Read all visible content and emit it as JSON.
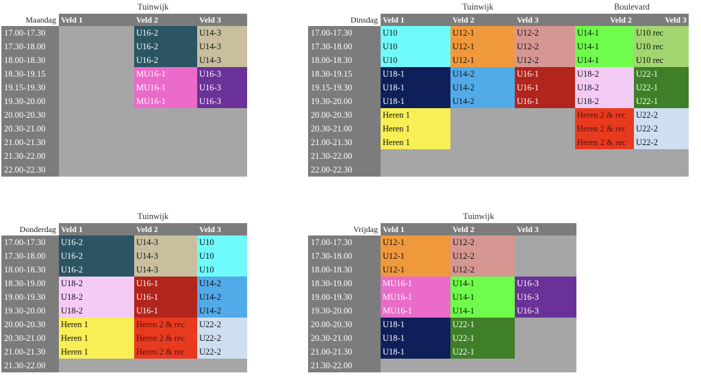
{
  "colors": {
    "header_bg": "#7c7c7c",
    "empty_bg": "#a6a6a6",
    "teams": {
      "U16-2": {
        "bg": "#2b5563",
        "fg": "#ffffff"
      },
      "U14-3": {
        "bg": "#c9bf9f",
        "fg": "#111111"
      },
      "MU16-1": {
        "bg": "#ea6bc9",
        "fg": "#ffffff"
      },
      "U16-3": {
        "bg": "#6a3298",
        "fg": "#ffffff"
      },
      "U10": {
        "bg": "#6ffbfb",
        "fg": "#111111"
      },
      "U12-1": {
        "bg": "#f0993c",
        "fg": "#111111"
      },
      "U12-2": {
        "bg": "#d69692",
        "fg": "#111111"
      },
      "U14-1": {
        "bg": "#6ffc4c",
        "fg": "#111111"
      },
      "U10 rec": {
        "bg": "#a3d570",
        "fg": "#111111"
      },
      "U18-1": {
        "bg": "#0e1f5a",
        "fg": "#ffffff"
      },
      "U14-2": {
        "bg": "#52aae8",
        "fg": "#111111"
      },
      "U16-1": {
        "bg": "#b1251d",
        "fg": "#ffffff"
      },
      "U18-2": {
        "bg": "#f3cbf5",
        "fg": "#111111"
      },
      "U22-1": {
        "bg": "#3f7f27",
        "fg": "#ffffff"
      },
      "Heren 1": {
        "bg": "#f8ef56",
        "fg": "#111111"
      },
      "Heren 2 & rec": {
        "bg": "#e83a1f",
        "fg": "#551111"
      },
      "U22-2": {
        "bg": "#cfdff2",
        "fg": "#111111"
      }
    }
  },
  "schedules": [
    {
      "id": "maandag",
      "day": "Maandag",
      "locations": [
        {
          "name": "Tuinwijk",
          "span": 3
        }
      ],
      "fields": [
        {
          "label": "Veld 1"
        },
        {
          "label": "Veld 2"
        },
        {
          "label": "Veld 3"
        }
      ],
      "times": [
        "17.00-17.30",
        "17.30-18.00",
        "18.00-18.30",
        "18.30-19.15",
        "19.15-19.30",
        "19.30-20.00",
        "20.00-20.30",
        "20.30-21.00",
        "21.00-21.30",
        "21.30-22.00",
        "22.00-22.30"
      ],
      "rows": [
        [
          null,
          "U16-2",
          "U14-3"
        ],
        [
          null,
          "U16-2",
          "U14-3"
        ],
        [
          null,
          "U16-2",
          "U14-3"
        ],
        [
          null,
          "MU16-1",
          "U16-3"
        ],
        [
          null,
          "MU16-1",
          "U16-3"
        ],
        [
          null,
          "MU16-1",
          "U16-3"
        ],
        [
          null,
          null,
          null
        ],
        [
          null,
          null,
          null
        ],
        [
          null,
          null,
          null
        ],
        [
          null,
          null,
          null
        ],
        [
          null,
          null,
          null
        ]
      ]
    },
    {
      "id": "dinsdag",
      "day": "Dinsdag",
      "locations": [
        {
          "name": "Tuinwijk",
          "span": 3
        },
        {
          "name": "Boulevard",
          "span": 2
        }
      ],
      "fields": [
        {
          "label": "Veld 1"
        },
        {
          "label": "Veld 2"
        },
        {
          "label": "Veld 3"
        },
        {
          "label": "Veld 2",
          "align": "right"
        },
        {
          "label": "Veld 3",
          "align": "right"
        }
      ],
      "times": [
        "17.00-17.30",
        "17.30-18.00",
        "18.00-18.30",
        "18.30-19.15",
        "19.15-19.30",
        "19.30-20.00",
        "20.00-20.30",
        "20.30-21.00",
        "21.00-21.30",
        "21.30-22.00",
        "22.00-22.30"
      ],
      "rows": [
        [
          "U10",
          "U12-1",
          "U12-2",
          "U14-1",
          "U10 rec"
        ],
        [
          "U10",
          "U12-1",
          "U12-2",
          "U14-1",
          "U10 rec"
        ],
        [
          "U10",
          "U12-1",
          "U12-2",
          "U14-1",
          "U10 rec"
        ],
        [
          "U18-1",
          "U14-2",
          "U16-1",
          "U18-2",
          "U22-1"
        ],
        [
          "U18-1",
          "U14-2",
          "U16-1",
          "U18-2",
          "U22-1"
        ],
        [
          "U18-1",
          "U14-2",
          "U16-1",
          "U18-2",
          "U22-1"
        ],
        [
          "Heren 1",
          null,
          null,
          "Heren 2 & rec",
          "U22-2"
        ],
        [
          "Heren 1",
          null,
          null,
          "Heren 2 & rec",
          "U22-2"
        ],
        [
          "Heren 1",
          null,
          null,
          "Heren 2 & rec",
          "U22-2"
        ],
        [
          null,
          null,
          null,
          null,
          null
        ],
        [
          null,
          null,
          null,
          null,
          null
        ]
      ]
    },
    {
      "id": "donderdag",
      "day": "Donderdag",
      "locations": [
        {
          "name": "Tuinwijk",
          "span": 3
        }
      ],
      "fields": [
        {
          "label": "Veld 1"
        },
        {
          "label": "Veld 2"
        },
        {
          "label": "Veld 3"
        }
      ],
      "times": [
        "17.00-17.30",
        "17.30-18.00",
        "18.00-18.30",
        "18.30-19.00",
        "19.00-19.30",
        "19.30-20.00",
        "20.00-20.30",
        "20.30-21.00",
        "21.00-21.30",
        "21.30-22.00"
      ],
      "rows": [
        [
          "U16-2",
          "U14-3",
          "U10"
        ],
        [
          "U16-2",
          "U14-3",
          "U10"
        ],
        [
          "U16-2",
          "U14-3",
          "U10"
        ],
        [
          "U18-2",
          "U16-1",
          "U14-2"
        ],
        [
          "U18-2",
          "U16-1",
          "U14-2"
        ],
        [
          "U18-2",
          "U16-1",
          "U14-2"
        ],
        [
          "Heren 1",
          "Heren 2 & rec",
          "U22-2"
        ],
        [
          "Heren 1",
          "Heren 2 & rec",
          "U22-2"
        ],
        [
          "Heren 1",
          "Heren 2 & rec",
          "U22-2"
        ],
        [
          null,
          null,
          null
        ]
      ]
    },
    {
      "id": "vrijdag",
      "day": "Vrijdag",
      "locations": [
        {
          "name": "Tuinwijk",
          "span": 3
        }
      ],
      "fields": [
        {
          "label": "Veld 1"
        },
        {
          "label": "Veld 2"
        },
        {
          "label": "Veld 3"
        }
      ],
      "times": [
        "17.00-17.30",
        "17.30-18.00",
        "18.00-18.30",
        "18.30-19.00",
        "19.00-19.30",
        "19.30-20.00",
        "20.00-20.30",
        "20.30-21.00",
        "21.00-21.30",
        "21.30-22.00"
      ],
      "rows": [
        [
          "U12-1",
          "U12-2",
          null
        ],
        [
          "U12-1",
          "U12-2",
          null
        ],
        [
          "U12-1",
          "U12-2",
          null
        ],
        [
          "MU16-1",
          "U14-1",
          "U16-3"
        ],
        [
          "MU16-1",
          "U14-1",
          "U16-3"
        ],
        [
          "MU16-1",
          "U14-1",
          "U16-3"
        ],
        [
          "U18-1",
          "U22-1",
          null
        ],
        [
          "U18-1",
          "U22-1",
          null
        ],
        [
          "U18-1",
          "U22-1",
          null
        ],
        [
          null,
          null,
          null
        ]
      ]
    }
  ]
}
